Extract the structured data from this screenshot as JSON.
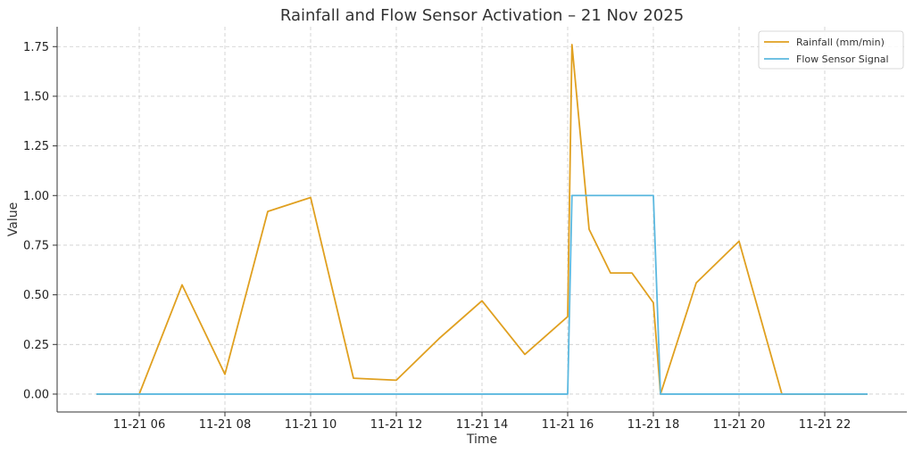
{
  "chart_data": {
    "type": "line",
    "title": "Rainfall and Flow Sensor Activation – 21 Nov 2025",
    "xlabel": "Time",
    "ylabel": "Value",
    "xlim": [
      "2025-11-21 04:05",
      "2025-11-21 23:55"
    ],
    "ylim": [
      -0.09,
      1.85
    ],
    "x_ticks": [
      {
        "t": "2025-11-21 06:00",
        "label": "11-21 06"
      },
      {
        "t": "2025-11-21 08:00",
        "label": "11-21 08"
      },
      {
        "t": "2025-11-21 10:00",
        "label": "11-21 10"
      },
      {
        "t": "2025-11-21 12:00",
        "label": "11-21 12"
      },
      {
        "t": "2025-11-21 14:00",
        "label": "11-21 14"
      },
      {
        "t": "2025-11-21 16:00",
        "label": "11-21 16"
      },
      {
        "t": "2025-11-21 18:00",
        "label": "11-21 18"
      },
      {
        "t": "2025-11-21 20:00",
        "label": "11-21 20"
      },
      {
        "t": "2025-11-21 22:00",
        "label": "11-21 22"
      }
    ],
    "y_ticks": [
      {
        "v": 0,
        "label": "0.00"
      },
      {
        "v": 0.25,
        "label": "0.25"
      },
      {
        "v": 0.5,
        "label": "0.50"
      },
      {
        "v": 0.75,
        "label": "0.75"
      },
      {
        "v": 1.0,
        "label": "1.00"
      },
      {
        "v": 1.25,
        "label": "1.25"
      },
      {
        "v": 1.5,
        "label": "1.50"
      },
      {
        "v": 1.75,
        "label": "1.75"
      }
    ],
    "grid": true,
    "legend_position": "top-right",
    "series": [
      {
        "name": "Rainfall (mm/min)",
        "color": "#E0A020",
        "points": [
          [
            "2025-11-21 05:00",
            0.0
          ],
          [
            "2025-11-21 06:00",
            0.0
          ],
          [
            "2025-11-21 07:00",
            0.55
          ],
          [
            "2025-11-21 08:00",
            0.1
          ],
          [
            "2025-11-21 09:00",
            0.92
          ],
          [
            "2025-11-21 10:00",
            0.99
          ],
          [
            "2025-11-21 11:00",
            0.08
          ],
          [
            "2025-11-21 12:00",
            0.07
          ],
          [
            "2025-11-21 13:00",
            0.28
          ],
          [
            "2025-11-21 14:00",
            0.47
          ],
          [
            "2025-11-21 15:00",
            0.2
          ],
          [
            "2025-11-21 16:00",
            0.39
          ],
          [
            "2025-11-21 16:06",
            1.76
          ],
          [
            "2025-11-21 16:30",
            0.83
          ],
          [
            "2025-11-21 17:00",
            0.61
          ],
          [
            "2025-11-21 17:30",
            0.61
          ],
          [
            "2025-11-21 18:00",
            0.46
          ],
          [
            "2025-11-21 18:10",
            0.0
          ],
          [
            "2025-11-21 19:00",
            0.56
          ],
          [
            "2025-11-21 20:00",
            0.77
          ],
          [
            "2025-11-21 21:00",
            0.0
          ],
          [
            "2025-11-21 22:00",
            0.0
          ],
          [
            "2025-11-21 23:00",
            0.0
          ]
        ]
      },
      {
        "name": "Flow Sensor Signal",
        "color": "#5BB8DF",
        "points": [
          [
            "2025-11-21 05:00",
            0
          ],
          [
            "2025-11-21 16:00",
            0
          ],
          [
            "2025-11-21 16:06",
            1
          ],
          [
            "2025-11-21 18:00",
            1
          ],
          [
            "2025-11-21 18:10",
            0
          ],
          [
            "2025-11-21 23:00",
            0
          ]
        ]
      }
    ]
  }
}
